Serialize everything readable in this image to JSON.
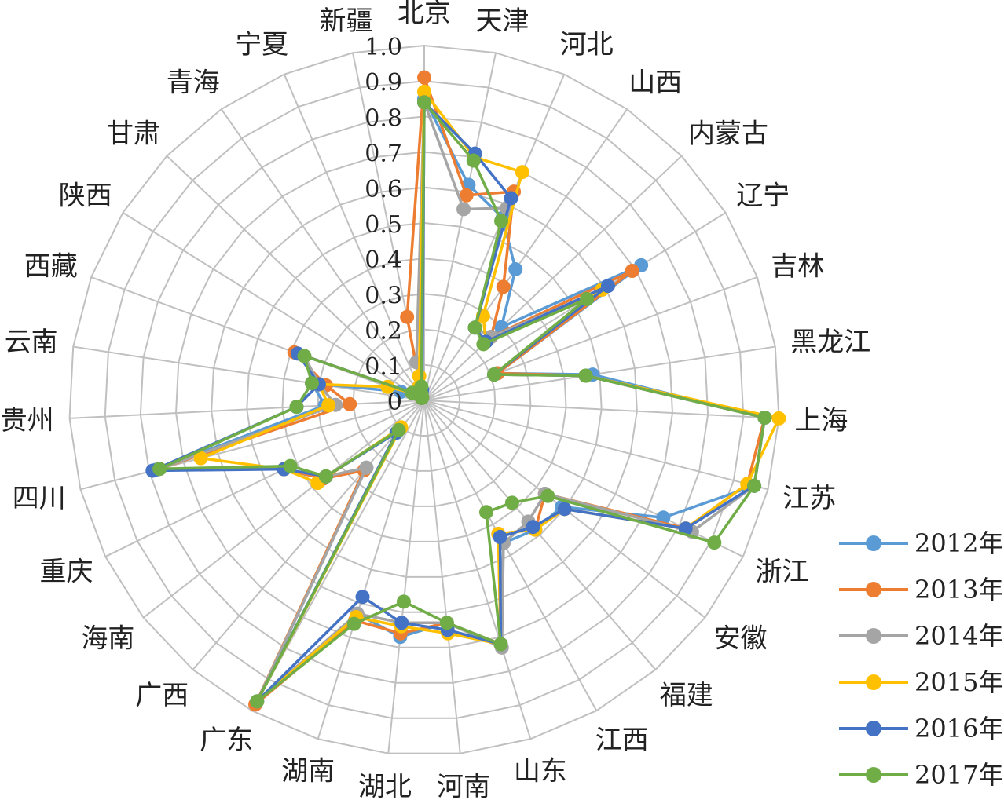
{
  "chart_data": {
    "type": "radar",
    "title": "",
    "categories": [
      "北京",
      "天津",
      "河北",
      "山西",
      "内蒙古",
      "辽宁",
      "吉林",
      "黑龙江",
      "上海",
      "江苏",
      "浙江",
      "安徽",
      "福建",
      "江西",
      "山东",
      "河南",
      "湖北",
      "湖南",
      "广东",
      "广西",
      "海南",
      "重庆",
      "四川",
      "贵州",
      "云南",
      "西藏",
      "陕西",
      "甘肃",
      "青海",
      "宁夏",
      "新疆"
    ],
    "radial_ticks": [
      "0",
      "0.1",
      "0.2",
      "0.3",
      "0.4",
      "0.5",
      "0.6",
      "0.7",
      "0.8",
      "0.9",
      "1.0"
    ],
    "rlim": [
      0,
      1.0
    ],
    "grid": true,
    "legend_position": "right",
    "series": [
      {
        "name": "2012年",
        "color": "#5B9BD5",
        "values": [
          0.85,
          0.62,
          0.56,
          0.45,
          0.3,
          0.72,
          0.22,
          0.48,
          0.96,
          0.96,
          0.75,
          0.49,
          0.48,
          0.46,
          0.72,
          0.63,
          0.67,
          0.63,
          0.97,
          0.25,
          0.36,
          0.44,
          0.78,
          0.28,
          0.32,
          0.07,
          0.04,
          0.01,
          0.01,
          0.02,
          0.03
        ]
      },
      {
        "name": "2013年",
        "color": "#ED7D31",
        "values": [
          0.91,
          0.59,
          0.64,
          0.39,
          0.26,
          0.69,
          0.22,
          0.46,
          0.96,
          0.94,
          0.82,
          0.43,
          0.48,
          0.43,
          0.72,
          0.63,
          0.66,
          0.65,
          0.98,
          0.26,
          0.36,
          0.44,
          0.77,
          0.21,
          0.28,
          0.39,
          0.04,
          0.01,
          0.01,
          0.02,
          0.24
        ]
      },
      {
        "name": "2014年",
        "color": "#A5A5A5",
        "values": [
          0.84,
          0.55,
          0.59,
          0.25,
          0.26,
          0.59,
          0.21,
          0.46,
          0.96,
          0.96,
          0.84,
          0.43,
          0.45,
          0.46,
          0.73,
          0.63,
          0.63,
          0.63,
          0.97,
          0.25,
          0.35,
          0.44,
          0.77,
          0.25,
          0.3,
          0.36,
          0.04,
          0.01,
          0.01,
          0.04,
          0.11
        ]
      },
      {
        "name": "2015年",
        "color": "#FFC000",
        "values": [
          0.87,
          0.7,
          0.7,
          0.29,
          0.24,
          0.59,
          0.21,
          0.46,
          1.0,
          0.94,
          0.82,
          0.5,
          0.48,
          0.43,
          0.72,
          0.66,
          0.64,
          0.64,
          0.97,
          0.1,
          0.38,
          0.44,
          0.65,
          0.27,
          0.3,
          0.11,
          0.04,
          0.01,
          0.01,
          0.04,
          0.07
        ]
      },
      {
        "name": "2016年",
        "color": "#4472C4",
        "values": [
          0.84,
          0.71,
          0.62,
          0.25,
          0.24,
          0.61,
          0.21,
          0.46,
          0.96,
          0.96,
          0.82,
          0.5,
          0.47,
          0.44,
          0.72,
          0.65,
          0.63,
          0.58,
          0.97,
          0.12,
          0.35,
          0.44,
          0.79,
          0.36,
          0.3,
          0.38,
          0.04,
          0.01,
          0.01,
          0.02,
          0.03
        ]
      },
      {
        "name": "2017年",
        "color": "#70AD47",
        "values": [
          0.84,
          0.69,
          0.55,
          0.25,
          0.23,
          0.54,
          0.21,
          0.46,
          0.96,
          0.96,
          0.91,
          0.44,
          0.38,
          0.36,
          0.72,
          0.63,
          0.57,
          0.66,
          0.97,
          0.11,
          0.35,
          0.42,
          0.77,
          0.36,
          0.32,
          0.36,
          0.04,
          0.01,
          0.01,
          0.02,
          0.04
        ]
      }
    ]
  }
}
